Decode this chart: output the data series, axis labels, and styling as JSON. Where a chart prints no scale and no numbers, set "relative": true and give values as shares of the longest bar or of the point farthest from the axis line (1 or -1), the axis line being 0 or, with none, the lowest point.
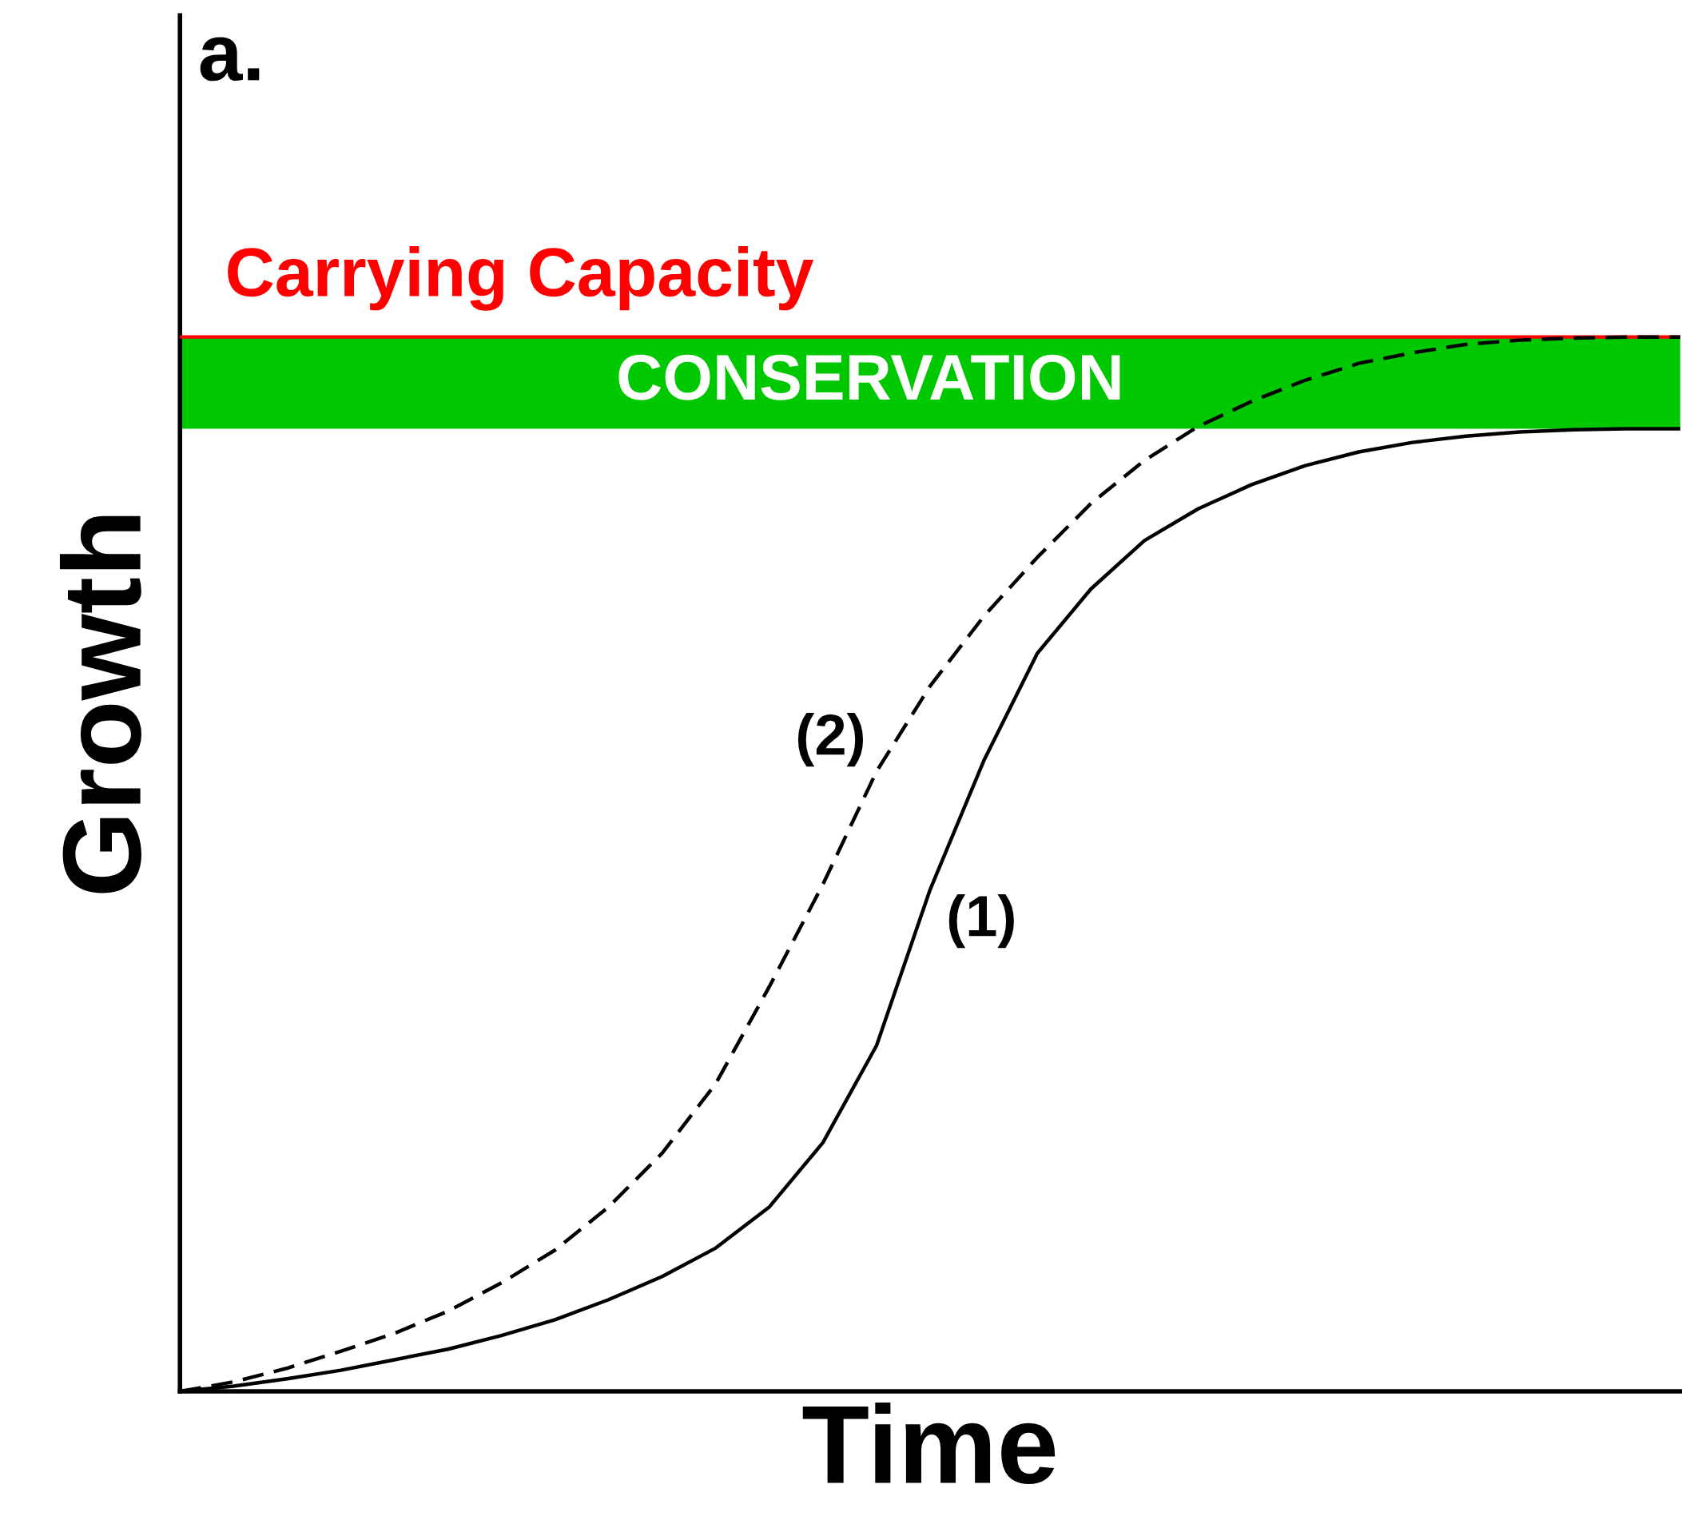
{
  "chart_data": {
    "type": "line",
    "relative": true,
    "xlabel": "Time",
    "ylabel": "Growth",
    "annotations": [
      "a."
    ],
    "categories": [
      null,
      null,
      null,
      null,
      null,
      null,
      null,
      null,
      null,
      null,
      null,
      null,
      null,
      null,
      null,
      null,
      null,
      null,
      null,
      null,
      null,
      null,
      null,
      null,
      null,
      null,
      null,
      null,
      null
    ],
    "series": [
      {
        "name": "(1)",
        "color": "#000000",
        "line_style": "solid",
        "values": [
          0,
          0.005,
          0.012,
          0.02,
          0.03,
          0.04,
          0.053,
          0.068,
          0.087,
          0.109,
          0.136,
          0.175,
          0.236,
          0.328,
          0.476,
          0.598,
          0.7,
          0.761,
          0.807,
          0.837,
          0.86,
          0.878,
          0.891,
          0.9,
          0.906,
          0.91,
          0.912,
          0.913,
          0.913
        ]
      },
      {
        "name": "(2)",
        "color": "#000000",
        "line_style": "dashed",
        "values": [
          0,
          0.009,
          0.022,
          0.038,
          0.055,
          0.076,
          0.103,
          0.134,
          0.175,
          0.226,
          0.292,
          0.384,
          0.481,
          0.588,
          0.669,
          0.735,
          0.791,
          0.842,
          0.883,
          0.915,
          0.939,
          0.959,
          0.975,
          0.985,
          0.993,
          0.997,
          0.999,
          1,
          1
        ]
      }
    ],
    "bands": [
      {
        "axis": "y",
        "from": 0.913,
        "to": 1,
        "label": "CONSERVATION",
        "color": "#00c800"
      }
    ],
    "ref_lines": [
      {
        "axis": "y",
        "value": 1,
        "label": "Carrying Capacity",
        "color": "#ff0000"
      }
    ],
    "legend": false
  }
}
